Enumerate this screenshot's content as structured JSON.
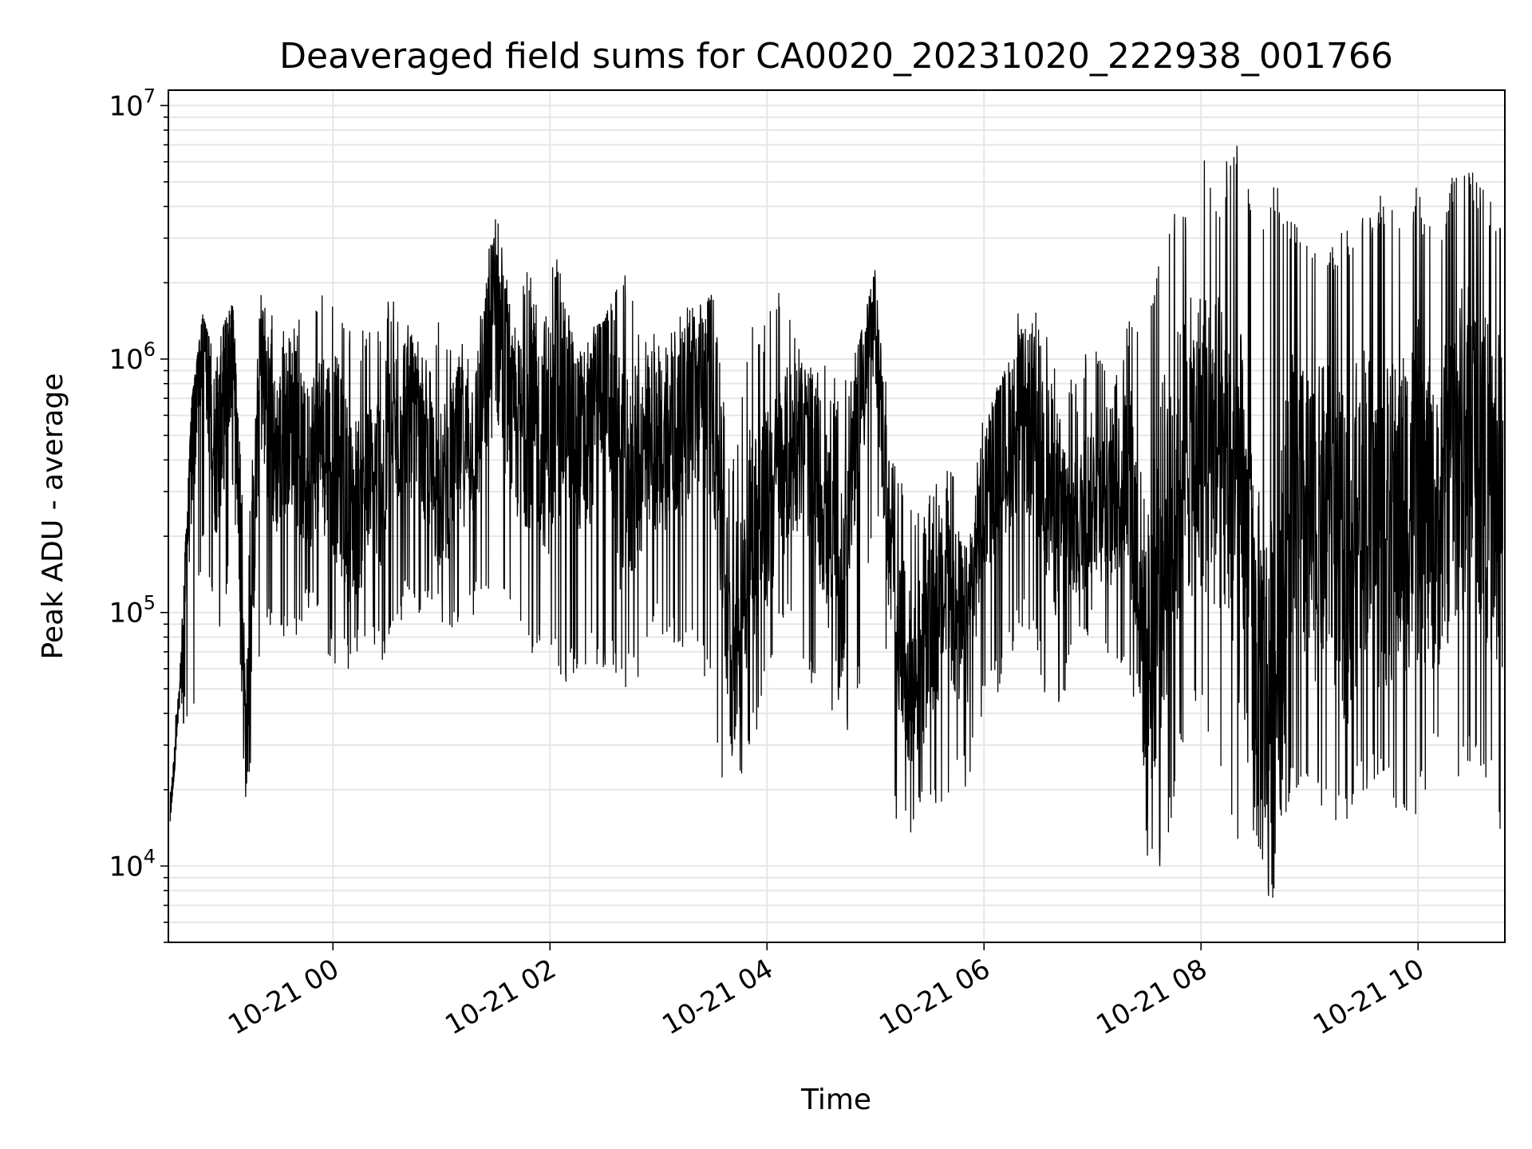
{
  "chart_data": {
    "type": "line",
    "title": "Deaveraged field sums for CA0020_20231020_222938_001766",
    "xlabel": "Time",
    "ylabel": "Peak ADU - average",
    "yscale": "log",
    "ylim": [
      5000,
      11500000
    ],
    "xlim": [
      "2023-10-20 22:29",
      "2023-10-21 10:48"
    ],
    "grid": true,
    "line_color": "#000000",
    "x_ticks": [
      {
        "label": "10-21 00",
        "value": "2023-10-21 00:00"
      },
      {
        "label": "10-21 02",
        "value": "2023-10-21 02:00"
      },
      {
        "label": "10-21 04",
        "value": "2023-10-21 04:00"
      },
      {
        "label": "10-21 06",
        "value": "2023-10-21 06:00"
      },
      {
        "label": "10-21 08",
        "value": "2023-10-21 08:00"
      },
      {
        "label": "10-21 10",
        "value": "2023-10-21 10:00"
      }
    ],
    "y_ticks": [
      {
        "base": "10",
        "exp": "4",
        "value": 10000
      },
      {
        "base": "10",
        "exp": "5",
        "value": 100000
      },
      {
        "base": "10",
        "exp": "6",
        "value": 1000000
      },
      {
        "base": "10",
        "exp": "7",
        "value": 10000000
      }
    ],
    "series": [
      {
        "x": [
          "2023-10-20 22:30",
          "2023-10-20 22:35",
          "2023-10-20 22:42",
          "2023-10-20 22:48",
          "2023-10-20 22:55",
          "2023-10-20 23:00",
          "2023-10-20 23:05",
          "2023-10-20 23:12",
          "2023-10-20 23:20",
          "2023-10-20 23:28",
          "2023-10-20 23:36",
          "2023-10-20 23:45",
          "2023-10-20 23:52",
          "2023-10-21 00:00",
          "2023-10-21 00:10",
          "2023-10-21 00:20",
          "2023-10-21 00:30",
          "2023-10-21 00:40",
          "2023-10-21 00:50",
          "2023-10-21 01:00",
          "2023-10-21 01:10",
          "2023-10-21 01:20",
          "2023-10-21 01:30",
          "2023-10-21 01:40",
          "2023-10-21 01:50",
          "2023-10-21 02:00",
          "2023-10-21 02:10",
          "2023-10-21 02:20",
          "2023-10-21 02:30",
          "2023-10-21 02:40",
          "2023-10-21 02:50",
          "2023-10-21 03:00",
          "2023-10-21 03:10",
          "2023-10-21 03:20",
          "2023-10-21 03:30",
          "2023-10-21 03:40",
          "2023-10-21 03:50",
          "2023-10-21 04:00",
          "2023-10-21 04:10",
          "2023-10-21 04:20",
          "2023-10-21 04:30",
          "2023-10-21 04:40",
          "2023-10-21 04:50",
          "2023-10-21 05:00",
          "2023-10-21 05:10",
          "2023-10-21 05:20",
          "2023-10-21 05:30",
          "2023-10-21 05:40",
          "2023-10-21 05:50",
          "2023-10-21 06:00",
          "2023-10-21 06:10",
          "2023-10-21 06:20",
          "2023-10-21 06:30",
          "2023-10-21 06:40",
          "2023-10-21 06:50",
          "2023-10-21 07:00",
          "2023-10-21 07:10",
          "2023-10-21 07:20",
          "2023-10-21 07:30",
          "2023-10-21 07:40",
          "2023-10-21 07:50",
          "2023-10-21 08:00",
          "2023-10-21 08:10",
          "2023-10-21 08:20",
          "2023-10-21 08:30",
          "2023-10-21 08:40",
          "2023-10-21 08:50",
          "2023-10-21 09:00",
          "2023-10-21 09:10",
          "2023-10-21 09:20",
          "2023-10-21 09:30",
          "2023-10-21 09:40",
          "2023-10-21 09:50",
          "2023-10-21 10:00",
          "2023-10-21 10:10",
          "2023-10-21 10:20",
          "2023-10-21 10:30",
          "2023-10-21 10:40",
          "2023-10-21 10:47"
        ],
        "values": [
          15000,
          45000,
          500000,
          1400000,
          400000,
          700000,
          1200000,
          30000,
          1000000,
          400000,
          600000,
          350000,
          500000,
          450000,
          250000,
          300000,
          400000,
          700000,
          400000,
          300000,
          450000,
          500000,
          1600000,
          500000,
          600000,
          500000,
          700000,
          400000,
          1100000,
          300000,
          400000,
          450000,
          500000,
          700000,
          800000,
          60000,
          200000,
          250000,
          400000,
          500000,
          300000,
          100000,
          700000,
          1400000,
          100000,
          50000,
          80000,
          120000,
          80000,
          300000,
          400000,
          600000,
          500000,
          250000,
          200000,
          300000,
          250000,
          400000,
          60000,
          200000,
          400000,
          500000,
          400000,
          300000,
          60000,
          40000,
          300000,
          200000,
          250000,
          150000,
          300000,
          200000,
          250000,
          300000,
          200000,
          400000,
          500000,
          300000,
          250000
        ],
        "min_values": [
          15000,
          38000,
          30000,
          200000,
          70000,
          70000,
          300000,
          12000,
          80000,
          90000,
          70000,
          100000,
          90000,
          60000,
          60000,
          70000,
          60000,
          100000,
          90000,
          90000,
          80000,
          100000,
          100000,
          80000,
          60000,
          60000,
          50000,
          60000,
          60000,
          50000,
          50000,
          80000,
          70000,
          80000,
          40000,
          12000,
          25000,
          50000,
          100000,
          50000,
          40000,
          25000,
          40000,
          300000,
          15000,
          12000,
          16000,
          18000,
          20000,
          40000,
          50000,
          90000,
          60000,
          30000,
          70000,
          80000,
          60000,
          60000,
          9500,
          10000,
          30000,
          40000,
          20000,
          10000,
          7500,
          7500,
          20000,
          20000,
          15000,
          15000,
          20000,
          20000,
          15000,
          15000,
          30000,
          20000,
          25000,
          20000,
          10000
        ],
        "max_values": [
          38000,
          55000,
          700000,
          1500000,
          1000000,
          1400000,
          1700000,
          130000,
          1800000,
          1500000,
          1200000,
          1800000,
          1700000,
          2100000,
          1500000,
          1300000,
          1800000,
          1700000,
          1000000,
          1500000,
          1300000,
          1400000,
          4300000,
          1500000,
          2600000,
          3600000,
          1500000,
          1300000,
          1400000,
          2500000,
          1300000,
          1300000,
          1500000,
          1700000,
          1800000,
          400000,
          1300000,
          1500000,
          2100000,
          900000,
          1000000,
          800000,
          1100000,
          2300000,
          400000,
          250000,
          300000,
          400000,
          400000,
          600000,
          900000,
          1700000,
          1800000,
          1200000,
          800000,
          1300000,
          800000,
          1500000,
          1700000,
          3500000,
          4000000,
          7000000,
          5000000,
          8000000,
          3500000,
          5000000,
          4000000,
          3700000,
          2700000,
          3500000,
          4000000,
          4500000,
          3700000,
          5000000,
          3000000,
          6000000,
          5500000,
          4500000,
          4500000
        ]
      }
    ]
  }
}
